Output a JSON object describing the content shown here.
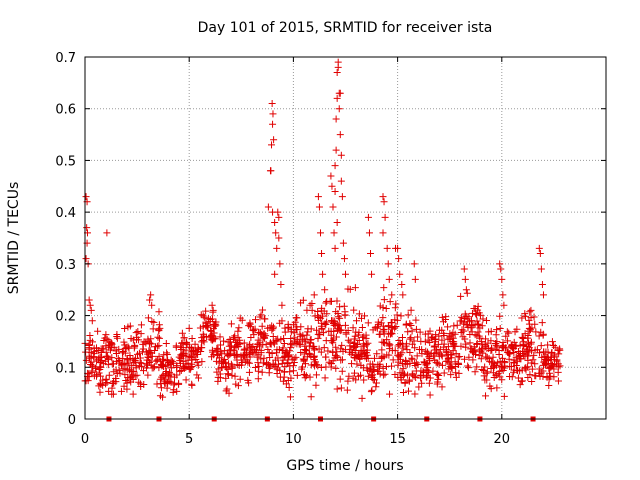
{
  "chart_data": {
    "type": "scatter",
    "title": "Day 101 of 2015, SRMTID for receiver ista",
    "xlabel": "GPS time / hours",
    "ylabel": "SRMTID / TECUs",
    "xlim": [
      0,
      25
    ],
    "ylim": [
      0,
      0.7
    ],
    "xticks": [
      "0",
      "5",
      "10",
      "15",
      "20"
    ],
    "yticks": [
      "0",
      "0.1",
      "0.2",
      "0.3",
      "0.4",
      "0.5",
      "0.6",
      "0.7"
    ],
    "grid": true,
    "marker": "plus",
    "series_color": "#e00000",
    "baseline_markers_x": [
      1.15,
      3.55,
      6.2,
      8.75,
      11.3,
      13.85,
      16.4,
      18.95,
      21.5
    ],
    "background_band": {
      "x_start": 0,
      "x_end": 22.8,
      "segments": [
        {
          "x": [
            0.0,
            0.5
          ],
          "center": 0.12,
          "spread": 0.045
        },
        {
          "x": [
            0.5,
            1.0
          ],
          "center": 0.11,
          "spread": 0.05
        },
        {
          "x": [
            1.0,
            2.0
          ],
          "center": 0.11,
          "spread": 0.06
        },
        {
          "x": [
            2.0,
            3.0
          ],
          "center": 0.12,
          "spread": 0.06
        },
        {
          "x": [
            3.0,
            3.6
          ],
          "center": 0.14,
          "spread": 0.06
        },
        {
          "x": [
            3.6,
            4.5
          ],
          "center": 0.09,
          "spread": 0.045
        },
        {
          "x": [
            4.5,
            5.5
          ],
          "center": 0.12,
          "spread": 0.05
        },
        {
          "x": [
            5.5,
            6.3
          ],
          "center": 0.16,
          "spread": 0.05
        },
        {
          "x": [
            6.3,
            7.0
          ],
          "center": 0.11,
          "spread": 0.05
        },
        {
          "x": [
            7.0,
            8.0
          ],
          "center": 0.13,
          "spread": 0.05
        },
        {
          "x": [
            8.0,
            9.0
          ],
          "center": 0.14,
          "spread": 0.06
        },
        {
          "x": [
            9.0,
            10.0
          ],
          "center": 0.13,
          "spread": 0.07
        },
        {
          "x": [
            10.0,
            11.0
          ],
          "center": 0.14,
          "spread": 0.07
        },
        {
          "x": [
            11.0,
            12.0
          ],
          "center": 0.16,
          "spread": 0.08
        },
        {
          "x": [
            12.0,
            13.0
          ],
          "center": 0.15,
          "spread": 0.08
        },
        {
          "x": [
            13.0,
            14.0
          ],
          "center": 0.12,
          "spread": 0.07
        },
        {
          "x": [
            14.0,
            15.0
          ],
          "center": 0.16,
          "spread": 0.08
        },
        {
          "x": [
            15.0,
            16.0
          ],
          "center": 0.13,
          "spread": 0.07
        },
        {
          "x": [
            16.0,
            17.0
          ],
          "center": 0.12,
          "spread": 0.06
        },
        {
          "x": [
            17.0,
            18.0
          ],
          "center": 0.13,
          "spread": 0.06
        },
        {
          "x": [
            18.0,
            19.0
          ],
          "center": 0.16,
          "spread": 0.06
        },
        {
          "x": [
            19.0,
            20.0
          ],
          "center": 0.12,
          "spread": 0.06
        },
        {
          "x": [
            20.0,
            21.0
          ],
          "center": 0.12,
          "spread": 0.06
        },
        {
          "x": [
            21.0,
            22.0
          ],
          "center": 0.14,
          "spread": 0.06
        },
        {
          "x": [
            22.0,
            22.8
          ],
          "center": 0.11,
          "spread": 0.04
        }
      ]
    },
    "spike_points": [
      {
        "x": 0.05,
        "y": 0.43
      },
      {
        "x": 0.1,
        "y": 0.42
      },
      {
        "x": 0.08,
        "y": 0.37
      },
      {
        "x": 0.12,
        "y": 0.36
      },
      {
        "x": 0.1,
        "y": 0.34
      },
      {
        "x": 0.05,
        "y": 0.31
      },
      {
        "x": 0.15,
        "y": 0.3
      },
      {
        "x": 0.2,
        "y": 0.23
      },
      {
        "x": 0.25,
        "y": 0.22
      },
      {
        "x": 0.3,
        "y": 0.21
      },
      {
        "x": 0.35,
        "y": 0.19
      },
      {
        "x": 1.05,
        "y": 0.36
      },
      {
        "x": 3.1,
        "y": 0.23
      },
      {
        "x": 3.15,
        "y": 0.24
      },
      {
        "x": 3.2,
        "y": 0.22
      },
      {
        "x": 6.1,
        "y": 0.22
      },
      {
        "x": 6.15,
        "y": 0.21
      },
      {
        "x": 8.8,
        "y": 0.41
      },
      {
        "x": 8.9,
        "y": 0.48
      },
      {
        "x": 8.92,
        "y": 0.48
      },
      {
        "x": 8.95,
        "y": 0.53
      },
      {
        "x": 9.0,
        "y": 0.57
      },
      {
        "x": 9.02,
        "y": 0.59
      },
      {
        "x": 8.98,
        "y": 0.61
      },
      {
        "x": 9.05,
        "y": 0.54
      },
      {
        "x": 9.0,
        "y": 0.4
      },
      {
        "x": 9.1,
        "y": 0.38
      },
      {
        "x": 9.15,
        "y": 0.36
      },
      {
        "x": 9.2,
        "y": 0.33
      },
      {
        "x": 9.25,
        "y": 0.4
      },
      {
        "x": 9.3,
        "y": 0.35
      },
      {
        "x": 9.35,
        "y": 0.3
      },
      {
        "x": 9.3,
        "y": 0.39
      },
      {
        "x": 9.1,
        "y": 0.28
      },
      {
        "x": 9.4,
        "y": 0.26
      },
      {
        "x": 9.45,
        "y": 0.22
      },
      {
        "x": 10.8,
        "y": 0.22
      },
      {
        "x": 10.9,
        "y": 0.21
      },
      {
        "x": 11.0,
        "y": 0.24
      },
      {
        "x": 11.2,
        "y": 0.43
      },
      {
        "x": 11.25,
        "y": 0.41
      },
      {
        "x": 11.3,
        "y": 0.36
      },
      {
        "x": 11.35,
        "y": 0.32
      },
      {
        "x": 11.4,
        "y": 0.28
      },
      {
        "x": 11.5,
        "y": 0.25
      },
      {
        "x": 11.8,
        "y": 0.47
      },
      {
        "x": 11.85,
        "y": 0.45
      },
      {
        "x": 11.9,
        "y": 0.41
      },
      {
        "x": 11.95,
        "y": 0.36
      },
      {
        "x": 12.0,
        "y": 0.49
      },
      {
        "x": 12.0,
        "y": 0.44
      },
      {
        "x": 12.05,
        "y": 0.52
      },
      {
        "x": 12.05,
        "y": 0.58
      },
      {
        "x": 12.1,
        "y": 0.62
      },
      {
        "x": 12.1,
        "y": 0.67
      },
      {
        "x": 12.15,
        "y": 0.69
      },
      {
        "x": 12.15,
        "y": 0.68
      },
      {
        "x": 12.2,
        "y": 0.63
      },
      {
        "x": 12.25,
        "y": 0.63
      },
      {
        "x": 12.2,
        "y": 0.6
      },
      {
        "x": 12.25,
        "y": 0.55
      },
      {
        "x": 12.3,
        "y": 0.51
      },
      {
        "x": 12.3,
        "y": 0.46
      },
      {
        "x": 12.35,
        "y": 0.43
      },
      {
        "x": 12.1,
        "y": 0.38
      },
      {
        "x": 12.4,
        "y": 0.34
      },
      {
        "x": 12.45,
        "y": 0.31
      },
      {
        "x": 12.5,
        "y": 0.28
      },
      {
        "x": 12.0,
        "y": 0.33
      },
      {
        "x": 13.6,
        "y": 0.39
      },
      {
        "x": 13.65,
        "y": 0.36
      },
      {
        "x": 13.7,
        "y": 0.32
      },
      {
        "x": 13.75,
        "y": 0.28
      },
      {
        "x": 14.3,
        "y": 0.43
      },
      {
        "x": 14.35,
        "y": 0.42
      },
      {
        "x": 14.4,
        "y": 0.39
      },
      {
        "x": 14.3,
        "y": 0.36
      },
      {
        "x": 14.5,
        "y": 0.33
      },
      {
        "x": 14.55,
        "y": 0.3
      },
      {
        "x": 14.6,
        "y": 0.27
      },
      {
        "x": 14.9,
        "y": 0.33
      },
      {
        "x": 15.0,
        "y": 0.33
      },
      {
        "x": 15.05,
        "y": 0.31
      },
      {
        "x": 15.1,
        "y": 0.28
      },
      {
        "x": 15.2,
        "y": 0.26
      },
      {
        "x": 15.25,
        "y": 0.24
      },
      {
        "x": 15.8,
        "y": 0.3
      },
      {
        "x": 15.85,
        "y": 0.27
      },
      {
        "x": 18.2,
        "y": 0.29
      },
      {
        "x": 18.25,
        "y": 0.27
      },
      {
        "x": 18.3,
        "y": 0.25
      },
      {
        "x": 19.9,
        "y": 0.3
      },
      {
        "x": 19.95,
        "y": 0.29
      },
      {
        "x": 20.0,
        "y": 0.27
      },
      {
        "x": 20.05,
        "y": 0.24
      },
      {
        "x": 20.1,
        "y": 0.22
      },
      {
        "x": 21.8,
        "y": 0.33
      },
      {
        "x": 21.85,
        "y": 0.32
      },
      {
        "x": 21.9,
        "y": 0.29
      },
      {
        "x": 21.95,
        "y": 0.26
      },
      {
        "x": 22.0,
        "y": 0.24
      }
    ]
  }
}
